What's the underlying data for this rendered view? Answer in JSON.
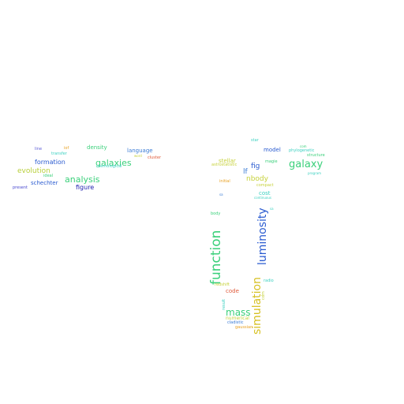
{
  "words": [
    {
      "text": "line",
      "color": "#5b5bd6"
    },
    {
      "text": "iof",
      "color": "#e8a020"
    },
    {
      "text": "density",
      "color": "#3ad07a"
    },
    {
      "text": "language",
      "color": "#3a7bd5"
    },
    {
      "text": "transfer",
      "color": "#3ad0c0"
    },
    {
      "text": "word",
      "color": "#c6d13a"
    },
    {
      "text": "cluster",
      "color": "#e05a3a"
    },
    {
      "text": "formation",
      "color": "#2a5bd0"
    },
    {
      "text": "galaxies",
      "color": "#3ad07a"
    },
    {
      "text": "cosmological",
      "color": "#3ad0c0"
    },
    {
      "text": "evolution",
      "color": "#b8cf3a"
    },
    {
      "text": "ideal",
      "color": "#3ad07a"
    },
    {
      "text": "analysis",
      "color": "#3ad07a"
    },
    {
      "text": "schechter",
      "color": "#2a5bd0"
    },
    {
      "text": "figure",
      "color": "#2020b0"
    },
    {
      "text": "present",
      "color": "#4a4ad0"
    },
    {
      "text": "star",
      "color": "#3ad0c0"
    },
    {
      "text": "model",
      "color": "#2a5bd0"
    },
    {
      "text": "phylogenetic",
      "color": "#3ad0c0"
    },
    {
      "text": "com",
      "color": "#3ad07a"
    },
    {
      "text": "structure",
      "color": "#3ad07a"
    },
    {
      "text": "stellar",
      "color": "#c6d13a"
    },
    {
      "text": "astrostatistic",
      "color": "#c6d13a"
    },
    {
      "text": "magie",
      "color": "#3ad07a"
    },
    {
      "text": "galaxy",
      "color": "#3ad07a"
    },
    {
      "text": "fig",
      "color": "#2a5bd0"
    },
    {
      "text": "lf",
      "color": "#3a7bd5"
    },
    {
      "text": "program",
      "color": "#3ad0c0"
    },
    {
      "text": "nbody",
      "color": "#c6d13a"
    },
    {
      "text": "initial",
      "color": "#e8a020"
    },
    {
      "text": "compact",
      "color": "#c6d13a"
    },
    {
      "text": "cost",
      "color": "#3ad0c0"
    },
    {
      "text": "continuous",
      "color": "#3ad0c0"
    },
    {
      "text": "sa",
      "color": "#3a7bd5"
    },
    {
      "text": "body",
      "color": "#3ad07a"
    },
    {
      "text": "sa",
      "color": "#3ad0c0"
    },
    {
      "text": "luminosity",
      "color": "#2a5bd0"
    },
    {
      "text": "function",
      "color": "#3ad07a"
    },
    {
      "text": "simulation",
      "color": "#d6c020"
    },
    {
      "text": "cdm",
      "color": "#c6d13a"
    },
    {
      "text": "radio",
      "color": "#3ad0c0"
    },
    {
      "text": "redshift",
      "color": "#c6d13a"
    },
    {
      "text": "code",
      "color": "#e05a3a"
    },
    {
      "text": "result",
      "color": "#3ad0c0"
    },
    {
      "text": "mass",
      "color": "#3ad07a"
    },
    {
      "text": "numerical",
      "color": "#c6d13a"
    },
    {
      "text": "cladistic",
      "color": "#3a7bd5"
    },
    {
      "text": "gaussian",
      "color": "#e8a020"
    }
  ]
}
